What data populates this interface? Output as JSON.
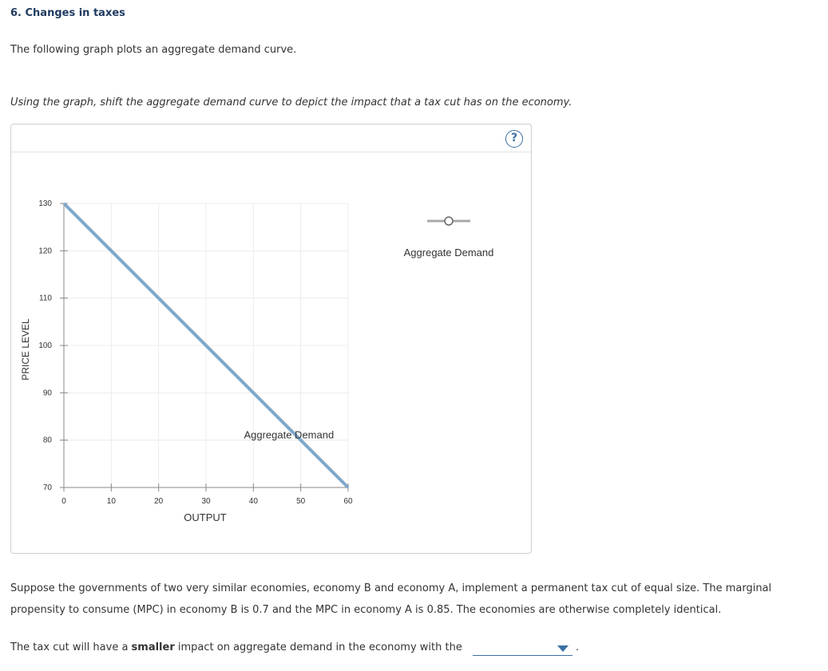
{
  "section_title": "6. Changes in taxes",
  "intro": "The following graph plots an aggregate demand curve.",
  "instruction": "Using the graph, shift the aggregate demand curve to depict the impact that a tax cut has on the economy.",
  "help_label": "?",
  "chart_data": {
    "type": "line",
    "xlabel": "OUTPUT",
    "ylabel": "PRICE LEVEL",
    "xlim": [
      0,
      60
    ],
    "ylim": [
      70,
      130
    ],
    "xticks": [
      0,
      10,
      20,
      30,
      40,
      50,
      60
    ],
    "yticks": [
      70,
      80,
      90,
      100,
      110,
      120,
      130
    ],
    "grid": true,
    "series": [
      {
        "name": "Aggregate Demand",
        "color": "#7fa7c9",
        "x": [
          0,
          60
        ],
        "y": [
          130,
          70
        ]
      }
    ],
    "curve_label": "Aggregate Demand",
    "palette_tool_label": "Aggregate Demand"
  },
  "paragraph": "Suppose the governments of two very similar economies, economy B and economy A, implement a permanent tax cut of equal size. The marginal propensity to consume (MPC) in economy B is 0.7 and the MPC in economy A is 0.85. The economies are otherwise completely identical.",
  "question": {
    "before": "The tax cut will have a ",
    "bold": "smaller",
    "after": " impact on aggregate demand in the economy with the",
    "dropdown_value": "",
    "end": "."
  }
}
